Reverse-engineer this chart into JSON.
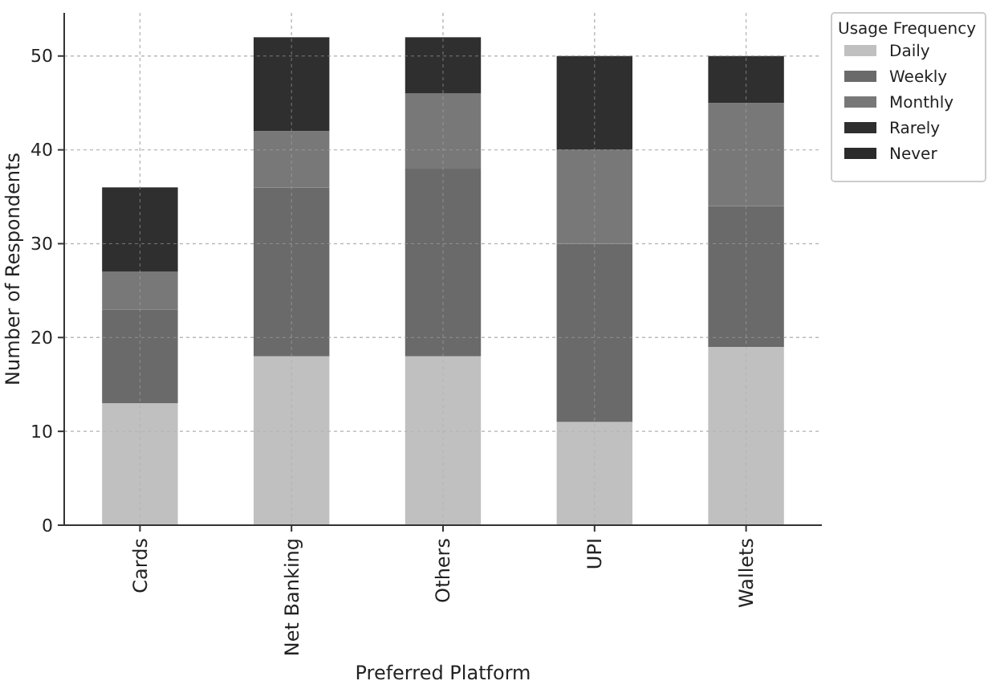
{
  "chart_data": {
    "type": "bar",
    "stacked": true,
    "xlabel": "Preferred Platform",
    "ylabel": "Number of Respondents",
    "legend_title": "Usage Frequency",
    "legend": "top right",
    "grid": true,
    "categories": [
      "Cards",
      "Net Banking",
      "Others",
      "UPI",
      "Wallets"
    ],
    "ylim": [
      0,
      54.6
    ],
    "yticks": [
      0,
      10,
      20,
      30,
      40,
      50
    ],
    "series": [
      {
        "name": "Daily",
        "color": "#c0c0c0",
        "values": [
          13,
          18,
          18,
          11,
          19
        ]
      },
      {
        "name": "Weekly",
        "color": "#6a6a6a",
        "values": [
          10,
          18,
          20,
          19,
          15
        ]
      },
      {
        "name": "Monthly",
        "color": "#787878",
        "values": [
          4,
          6,
          8,
          10,
          11
        ]
      },
      {
        "name": "Rarely",
        "color": "#2f2f2f",
        "values": [
          9,
          10,
          6,
          10,
          5
        ]
      },
      {
        "name": "Never",
        "color": "#2b2b2b",
        "values": [
          0,
          0,
          0,
          0,
          0
        ]
      }
    ]
  }
}
